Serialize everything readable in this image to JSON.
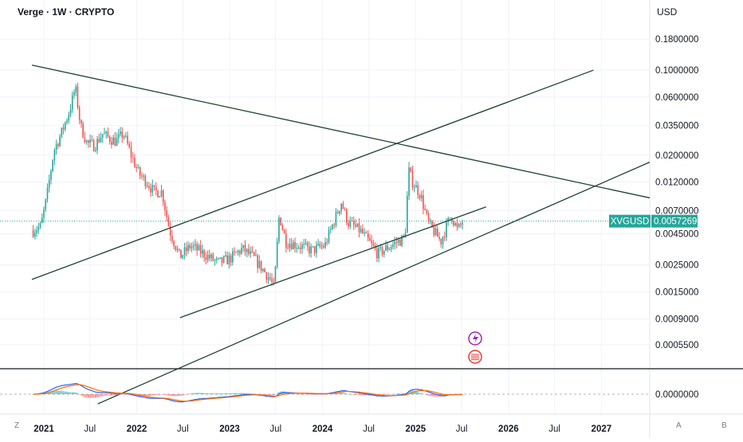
{
  "header": {
    "title": "Verge · 1W · CRYPTO",
    "currency": "USD"
  },
  "price_tag": {
    "symbol": "XVGUSD",
    "value": "0.0057269"
  },
  "corner_labels": {
    "left": "Z",
    "auto": "A",
    "base": "B"
  },
  "colors": {
    "up": "#26a69a",
    "down": "#ef5350",
    "trendline": "#1b4332",
    "price_line": "#26a69a",
    "macd": "#2962ff",
    "signal": "#ff6d00",
    "event_dividend": "#9c27b0",
    "event_flag": "#e53935"
  },
  "chart_data": {
    "type": "candlestick",
    "title": "Verge · 1W · CRYPTO",
    "scale": "log",
    "y_ticks": [
      0.18,
      0.1,
      0.06,
      0.035,
      0.02,
      0.012,
      0.007,
      0.0045,
      0.0025,
      0.0015,
      0.0009,
      0.00055
    ],
    "y_tick_labels": [
      "0.1800000",
      "0.1000000",
      "0.0600000",
      "0.0350000",
      "0.0200000",
      "0.0120000",
      "0.0070000",
      "0.0045000",
      "0.0025000",
      "0.0015000",
      "0.0009000",
      "0.0005500"
    ],
    "x_ticks": [
      {
        "date": "2021-01-01",
        "label": "2021",
        "year": true
      },
      {
        "date": "2021-07-01",
        "label": "Jul",
        "year": false
      },
      {
        "date": "2022-01-01",
        "label": "2022",
        "year": true
      },
      {
        "date": "2022-07-01",
        "label": "Jul",
        "year": false
      },
      {
        "date": "2023-01-01",
        "label": "2023",
        "year": true
      },
      {
        "date": "2023-07-01",
        "label": "Jul",
        "year": false
      },
      {
        "date": "2024-01-01",
        "label": "2024",
        "year": true
      },
      {
        "date": "2024-07-01",
        "label": "Jul",
        "year": false
      },
      {
        "date": "2025-01-01",
        "label": "2025",
        "year": true
      },
      {
        "date": "2025-07-01",
        "label": "Jul",
        "year": false
      },
      {
        "date": "2026-01-01",
        "label": "2026",
        "year": true
      },
      {
        "date": "2026-07-01",
        "label": "Jul",
        "year": false
      },
      {
        "date": "2027-01-01",
        "label": "2027",
        "year": true
      }
    ],
    "x_range": [
      "2020-11-15",
      "2027-07-10"
    ],
    "y_range": [
      0.00035,
      0.24
    ],
    "last_price": 0.0057269,
    "price_anchors": [
      [
        "2020-11-20",
        0.0048
      ],
      [
        "2020-12-20",
        0.0052
      ],
      [
        "2021-01-10",
        0.0085
      ],
      [
        "2021-02-10",
        0.022
      ],
      [
        "2021-03-10",
        0.03
      ],
      [
        "2021-04-10",
        0.045
      ],
      [
        "2021-05-05",
        0.072
      ],
      [
        "2021-05-25",
        0.035
      ],
      [
        "2021-06-20",
        0.025
      ],
      [
        "2021-07-20",
        0.024
      ],
      [
        "2021-08-20",
        0.03
      ],
      [
        "2021-09-10",
        0.028
      ],
      [
        "2021-10-10",
        0.026
      ],
      [
        "2021-11-10",
        0.03
      ],
      [
        "2021-12-10",
        0.02
      ],
      [
        "2022-01-10",
        0.014
      ],
      [
        "2022-02-10",
        0.012
      ],
      [
        "2022-03-10",
        0.01
      ],
      [
        "2022-04-10",
        0.01
      ],
      [
        "2022-05-10",
        0.0048
      ],
      [
        "2022-06-20",
        0.0029
      ],
      [
        "2022-08-01",
        0.0036
      ],
      [
        "2022-09-20",
        0.0031
      ],
      [
        "2022-11-15",
        0.0026
      ],
      [
        "2023-01-01",
        0.0028
      ],
      [
        "2023-02-20",
        0.0034
      ],
      [
        "2023-04-10",
        0.0028
      ],
      [
        "2023-06-10",
        0.0019
      ],
      [
        "2023-06-25",
        0.0016
      ],
      [
        "2023-07-15",
        0.0065
      ],
      [
        "2023-08-10",
        0.0039
      ],
      [
        "2023-10-01",
        0.0036
      ],
      [
        "2023-11-20",
        0.0033
      ],
      [
        "2024-01-10",
        0.0036
      ],
      [
        "2024-03-15",
        0.0082
      ],
      [
        "2024-04-10",
        0.0056
      ],
      [
        "2024-06-01",
        0.0047
      ],
      [
        "2024-08-05",
        0.0031
      ],
      [
        "2024-10-15",
        0.0038
      ],
      [
        "2024-11-20",
        0.0042
      ],
      [
        "2024-12-05",
        0.015
      ],
      [
        "2024-12-20",
        0.012
      ],
      [
        "2025-01-20",
        0.0095
      ],
      [
        "2025-02-20",
        0.0055
      ],
      [
        "2025-04-10",
        0.0039
      ],
      [
        "2025-05-20",
        0.0065
      ],
      [
        "2025-06-15",
        0.0048
      ],
      [
        "2025-07-05",
        0.0057
      ]
    ],
    "trendlines": [
      {
        "name": "upper-resistance",
        "from": [
          "2020-11-15",
          0.11
        ],
        "to": [
          "2027-07-10",
          0.0089
        ]
      },
      {
        "name": "channel-top",
        "from": [
          "2020-11-15",
          0.0019
        ],
        "to": [
          "2026-12-01",
          0.1
        ]
      },
      {
        "name": "support-1",
        "from": [
          "2022-06-20",
          0.00092
        ],
        "to": [
          "2025-10-05",
          0.0075
        ]
      },
      {
        "name": "support-2",
        "from": [
          "2021-08-01",
          0.00018
        ],
        "to": [
          "2027-07-10",
          0.0175
        ]
      }
    ],
    "macd": {
      "zero_label": "0.0000000",
      "y_range": [
        -1.0,
        1.0
      ]
    }
  }
}
